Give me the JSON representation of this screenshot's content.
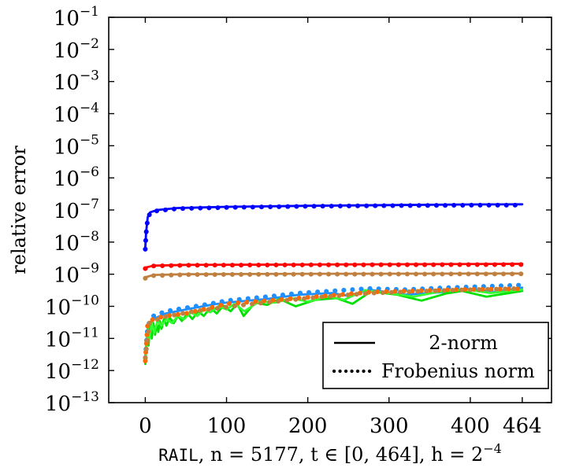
{
  "chart_data": {
    "type": "line",
    "ylabel": "relative error",
    "xlabel": {
      "prefix": "RAIL",
      "rest": ", n = 5177, t ∈ [0, 464], h = 2",
      "exp": "−4"
    },
    "xlim": [
      -45,
      500
    ],
    "ylim_log10": [
      -13,
      -1
    ],
    "yscale": "log",
    "grid": false,
    "x_ticks": [
      0,
      100,
      200,
      300,
      400,
      464
    ],
    "y_tick_exponents": [
      -13,
      -12,
      -11,
      -10,
      -9,
      -8,
      -7,
      -6,
      -5,
      -4,
      -3,
      -2,
      -1
    ],
    "y_tick_base": "10",
    "legend": {
      "placement": "lower-right",
      "entries": [
        {
          "label": "2-norm",
          "style": "solid"
        },
        {
          "label": "Frobenius norm",
          "style": "dotted"
        }
      ]
    },
    "series": [
      {
        "color": "#0000ff",
        "style": "solid",
        "points": [
          [
            0,
            6.5e-09
          ],
          [
            1,
            2e-08
          ],
          [
            3,
            6e-08
          ],
          [
            6,
            8.5e-08
          ],
          [
            15,
            1e-07
          ],
          [
            40,
            1.15e-07
          ],
          [
            100,
            1.25e-07
          ],
          [
            200,
            1.35e-07
          ],
          [
            300,
            1.42e-07
          ],
          [
            400,
            1.48e-07
          ],
          [
            464,
            1.5e-07
          ]
        ]
      },
      {
        "color": "#0000ff",
        "style": "dotted",
        "points": [
          [
            0,
            6e-09
          ],
          [
            1,
            1.8e-08
          ],
          [
            3,
            5.5e-08
          ],
          [
            6,
            8e-08
          ],
          [
            15,
            9.5e-08
          ],
          [
            40,
            1.1e-07
          ],
          [
            100,
            1.2e-07
          ],
          [
            200,
            1.3e-07
          ],
          [
            300,
            1.36e-07
          ],
          [
            400,
            1.41e-07
          ],
          [
            464,
            1.42e-07
          ]
        ]
      },
      {
        "color": "#ff0000",
        "style": "solid",
        "points": [
          [
            0,
            1.6e-09
          ],
          [
            10,
            1.85e-09
          ],
          [
            50,
            1.95e-09
          ],
          [
            200,
            2e-09
          ],
          [
            464,
            2.1e-09
          ]
        ]
      },
      {
        "color": "#ff0000",
        "style": "dotted",
        "points": [
          [
            0,
            1.5e-09
          ],
          [
            10,
            1.8e-09
          ],
          [
            50,
            1.9e-09
          ],
          [
            200,
            1.95e-09
          ],
          [
            464,
            2e-09
          ]
        ]
      },
      {
        "color": "#bf8040",
        "style": "solid",
        "points": [
          [
            0,
            8e-10
          ],
          [
            10,
            9.5e-10
          ],
          [
            50,
            1e-09
          ],
          [
            200,
            1.03e-09
          ],
          [
            464,
            1.05e-09
          ]
        ]
      },
      {
        "color": "#bf8040",
        "style": "dotted",
        "points": [
          [
            0,
            7.5e-10
          ],
          [
            10,
            9e-10
          ],
          [
            50,
            9.7e-10
          ],
          [
            200,
            1e-09
          ],
          [
            464,
            1.02e-09
          ]
        ]
      },
      {
        "color": "#1e90ff",
        "style": "solid",
        "points": [
          [
            0,
            3e-12
          ],
          [
            3,
            2e-11
          ],
          [
            10,
            4e-11
          ],
          [
            25,
            6e-11
          ],
          [
            50,
            8e-11
          ],
          [
            80,
            1.1e-10
          ],
          [
            100,
            1.3e-10
          ],
          [
            150,
            1.7e-10
          ],
          [
            190,
            2.3e-10
          ],
          [
            230,
            2.6e-10
          ],
          [
            250,
            2.1e-10
          ],
          [
            275,
            3.3e-10
          ],
          [
            320,
            2.3e-10
          ],
          [
            370,
            2.8e-10
          ],
          [
            400,
            3.5e-10
          ],
          [
            430,
            2.8e-10
          ],
          [
            464,
            3.8e-10
          ]
        ]
      },
      {
        "color": "#1e90ff",
        "style": "dotted",
        "points": [
          [
            0,
            2.5e-12
          ],
          [
            3,
            2.5e-11
          ],
          [
            10,
            5e-11
          ],
          [
            25,
            7e-11
          ],
          [
            50,
            9e-11
          ],
          [
            80,
            1.2e-10
          ],
          [
            100,
            1.5e-10
          ],
          [
            150,
            2e-10
          ],
          [
            190,
            2.6e-10
          ],
          [
            230,
            3e-10
          ],
          [
            275,
            3.6e-10
          ],
          [
            320,
            3.3e-10
          ],
          [
            370,
            3.8e-10
          ],
          [
            420,
            4.2e-10
          ],
          [
            464,
            4.6e-10
          ]
        ]
      },
      {
        "color": "#ff6a00",
        "style": "dotted",
        "points": [
          [
            0,
            2e-12
          ],
          [
            3,
            3e-11
          ],
          [
            10,
            4e-11
          ],
          [
            25,
            5e-11
          ],
          [
            50,
            6e-11
          ],
          [
            80,
            9e-11
          ],
          [
            100,
            1.2e-10
          ],
          [
            150,
            1.5e-10
          ],
          [
            200,
            1.9e-10
          ],
          [
            240,
            2.3e-10
          ],
          [
            280,
            2.8e-10
          ],
          [
            330,
            3e-10
          ],
          [
            380,
            3.3e-10
          ],
          [
            464,
            3.5e-10
          ]
        ]
      },
      {
        "color": "#bf8040",
        "style": "dotted",
        "points": [
          [
            0,
            2.5e-12
          ],
          [
            5,
            3e-11
          ],
          [
            20,
            4.5e-11
          ],
          [
            60,
            7e-11
          ],
          [
            120,
            1.1e-10
          ],
          [
            200,
            1.8e-10
          ],
          [
            280,
            2.6e-10
          ],
          [
            380,
            3.2e-10
          ],
          [
            464,
            3.6e-10
          ]
        ]
      },
      {
        "color": "#00e000",
        "style": "solid",
        "points": [
          [
            0,
            1.6e-12
          ],
          [
            2,
            1.5e-11
          ],
          [
            4,
            6e-12
          ],
          [
            6,
            2.5e-11
          ],
          [
            8,
            1e-11
          ],
          [
            10,
            3e-11
          ],
          [
            12,
            1.3e-11
          ],
          [
            14,
            2.8e-11
          ],
          [
            16,
            1.6e-11
          ],
          [
            18,
            3.5e-11
          ],
          [
            20,
            2e-11
          ],
          [
            23,
            4e-11
          ],
          [
            26,
            2.5e-11
          ],
          [
            30,
            4.5e-11
          ],
          [
            35,
            3e-11
          ],
          [
            40,
            5e-11
          ],
          [
            45,
            3.5e-11
          ],
          [
            52,
            6e-11
          ],
          [
            58,
            4e-11
          ],
          [
            65,
            7e-11
          ],
          [
            72,
            5e-11
          ],
          [
            80,
            9e-11
          ],
          [
            88,
            6e-11
          ],
          [
            96,
            1.05e-10
          ],
          [
            105,
            7e-11
          ],
          [
            113,
            1.2e-10
          ],
          [
            121,
            5e-11
          ],
          [
            135,
            1.3e-10
          ],
          [
            150,
            1.1e-10
          ],
          [
            165,
            1.7e-10
          ],
          [
            185,
            1e-10
          ],
          [
            210,
            1.6e-10
          ],
          [
            235,
            1.8e-10
          ],
          [
            255,
            1.2e-10
          ],
          [
            278,
            2.9e-10
          ],
          [
            310,
            2.3e-10
          ],
          [
            340,
            1.5e-10
          ],
          [
            370,
            2.5e-10
          ],
          [
            390,
            3e-10
          ],
          [
            420,
            2e-10
          ],
          [
            464,
            3e-10
          ]
        ]
      },
      {
        "color": "#33ff33",
        "style": "solid",
        "points": [
          [
            0,
            2.5e-12
          ],
          [
            3,
            2e-11
          ],
          [
            5,
            1e-11
          ],
          [
            8,
            3e-11
          ],
          [
            11,
            1.5e-11
          ],
          [
            15,
            3.5e-11
          ],
          [
            20,
            2.5e-11
          ],
          [
            26,
            4e-11
          ],
          [
            33,
            3e-11
          ],
          [
            40,
            5e-11
          ],
          [
            48,
            4e-11
          ],
          [
            56,
            6.5e-11
          ],
          [
            64,
            5e-11
          ],
          [
            72,
            8e-11
          ],
          [
            80,
            6.5e-11
          ],
          [
            90,
            1e-10
          ],
          [
            100,
            8e-11
          ],
          [
            110,
            1.2e-10
          ],
          [
            122,
            7e-11
          ],
          [
            140,
            1.4e-10
          ],
          [
            160,
            1.3e-10
          ],
          [
            180,
            1.8e-10
          ],
          [
            200,
            1.4e-10
          ],
          [
            225,
            2e-10
          ],
          [
            245,
            1.6e-10
          ],
          [
            270,
            3.2e-10
          ],
          [
            300,
            2.6e-10
          ],
          [
            330,
            2e-10
          ],
          [
            360,
            2.8e-10
          ],
          [
            395,
            3.3e-10
          ],
          [
            425,
            2.6e-10
          ],
          [
            464,
            3.3e-10
          ]
        ]
      }
    ]
  }
}
